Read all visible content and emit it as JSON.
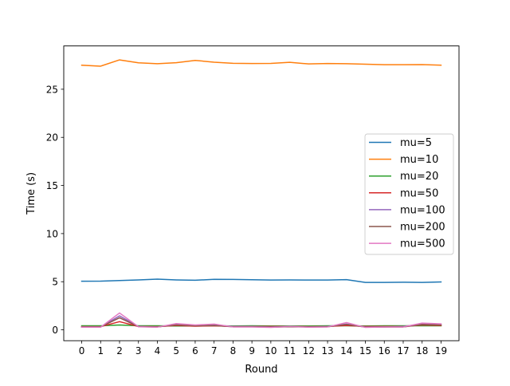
{
  "chart_data": {
    "type": "line",
    "title": "",
    "xlabel": "Round",
    "ylabel": "Time (s)",
    "x": [
      0,
      1,
      2,
      3,
      4,
      5,
      6,
      7,
      8,
      9,
      10,
      11,
      12,
      13,
      14,
      15,
      16,
      17,
      18,
      19
    ],
    "xticks": [
      "0",
      "1",
      "2",
      "3",
      "4",
      "5",
      "6",
      "7",
      "8",
      "9",
      "10",
      "11",
      "12",
      "13",
      "14",
      "15",
      "16",
      "17",
      "18",
      "19"
    ],
    "xlim": [
      -0.95,
      19.95
    ],
    "ylim": [
      -1.13,
      29.5
    ],
    "yticks": [
      0,
      5,
      10,
      15,
      20,
      25
    ],
    "ytick_labels": [
      "0",
      "5",
      "10",
      "15",
      "20",
      "25"
    ],
    "grid": false,
    "legend_position": "center-right",
    "series": [
      {
        "name": "mu=5",
        "color": "#1f77b4",
        "values": [
          5.05,
          5.06,
          5.12,
          5.18,
          5.27,
          5.19,
          5.15,
          5.25,
          5.24,
          5.21,
          5.17,
          5.18,
          5.17,
          5.17,
          5.22,
          4.93,
          4.93,
          4.95,
          4.93,
          4.98
        ]
      },
      {
        "name": "mu=10",
        "color": "#ff7f0e",
        "values": [
          27.5,
          27.4,
          28.05,
          27.75,
          27.65,
          27.76,
          28.0,
          27.81,
          27.7,
          27.67,
          27.68,
          27.8,
          27.63,
          27.67,
          27.65,
          27.6,
          27.55,
          27.55,
          27.56,
          27.5
        ]
      },
      {
        "name": "mu=20",
        "color": "#2ca02c",
        "values": [
          0.42,
          0.42,
          0.5,
          0.42,
          0.42,
          0.4,
          0.4,
          0.42,
          0.4,
          0.42,
          0.4,
          0.4,
          0.4,
          0.42,
          0.42,
          0.4,
          0.42,
          0.42,
          0.42,
          0.42
        ]
      },
      {
        "name": "mu=50",
        "color": "#d62728",
        "values": [
          0.33,
          0.33,
          0.85,
          0.35,
          0.33,
          0.45,
          0.38,
          0.42,
          0.35,
          0.35,
          0.35,
          0.35,
          0.33,
          0.35,
          0.45,
          0.35,
          0.35,
          0.35,
          0.5,
          0.45
        ]
      },
      {
        "name": "mu=100",
        "color": "#9467bd",
        "values": [
          0.3,
          0.3,
          1.45,
          0.35,
          0.3,
          0.55,
          0.45,
          0.5,
          0.35,
          0.35,
          0.3,
          0.35,
          0.3,
          0.35,
          0.6,
          0.3,
          0.3,
          0.35,
          0.6,
          0.55
        ]
      },
      {
        "name": "mu=200",
        "color": "#8c564b",
        "values": [
          0.3,
          0.3,
          1.25,
          0.33,
          0.3,
          0.5,
          0.42,
          0.45,
          0.32,
          0.33,
          0.28,
          0.32,
          0.3,
          0.32,
          0.55,
          0.28,
          0.3,
          0.3,
          0.55,
          0.5
        ]
      },
      {
        "name": "mu=500",
        "color": "#e377c2",
        "values": [
          0.28,
          0.28,
          1.75,
          0.32,
          0.28,
          0.65,
          0.5,
          0.6,
          0.3,
          0.3,
          0.25,
          0.35,
          0.28,
          0.3,
          0.75,
          0.25,
          0.3,
          0.3,
          0.7,
          0.62
        ]
      }
    ]
  }
}
